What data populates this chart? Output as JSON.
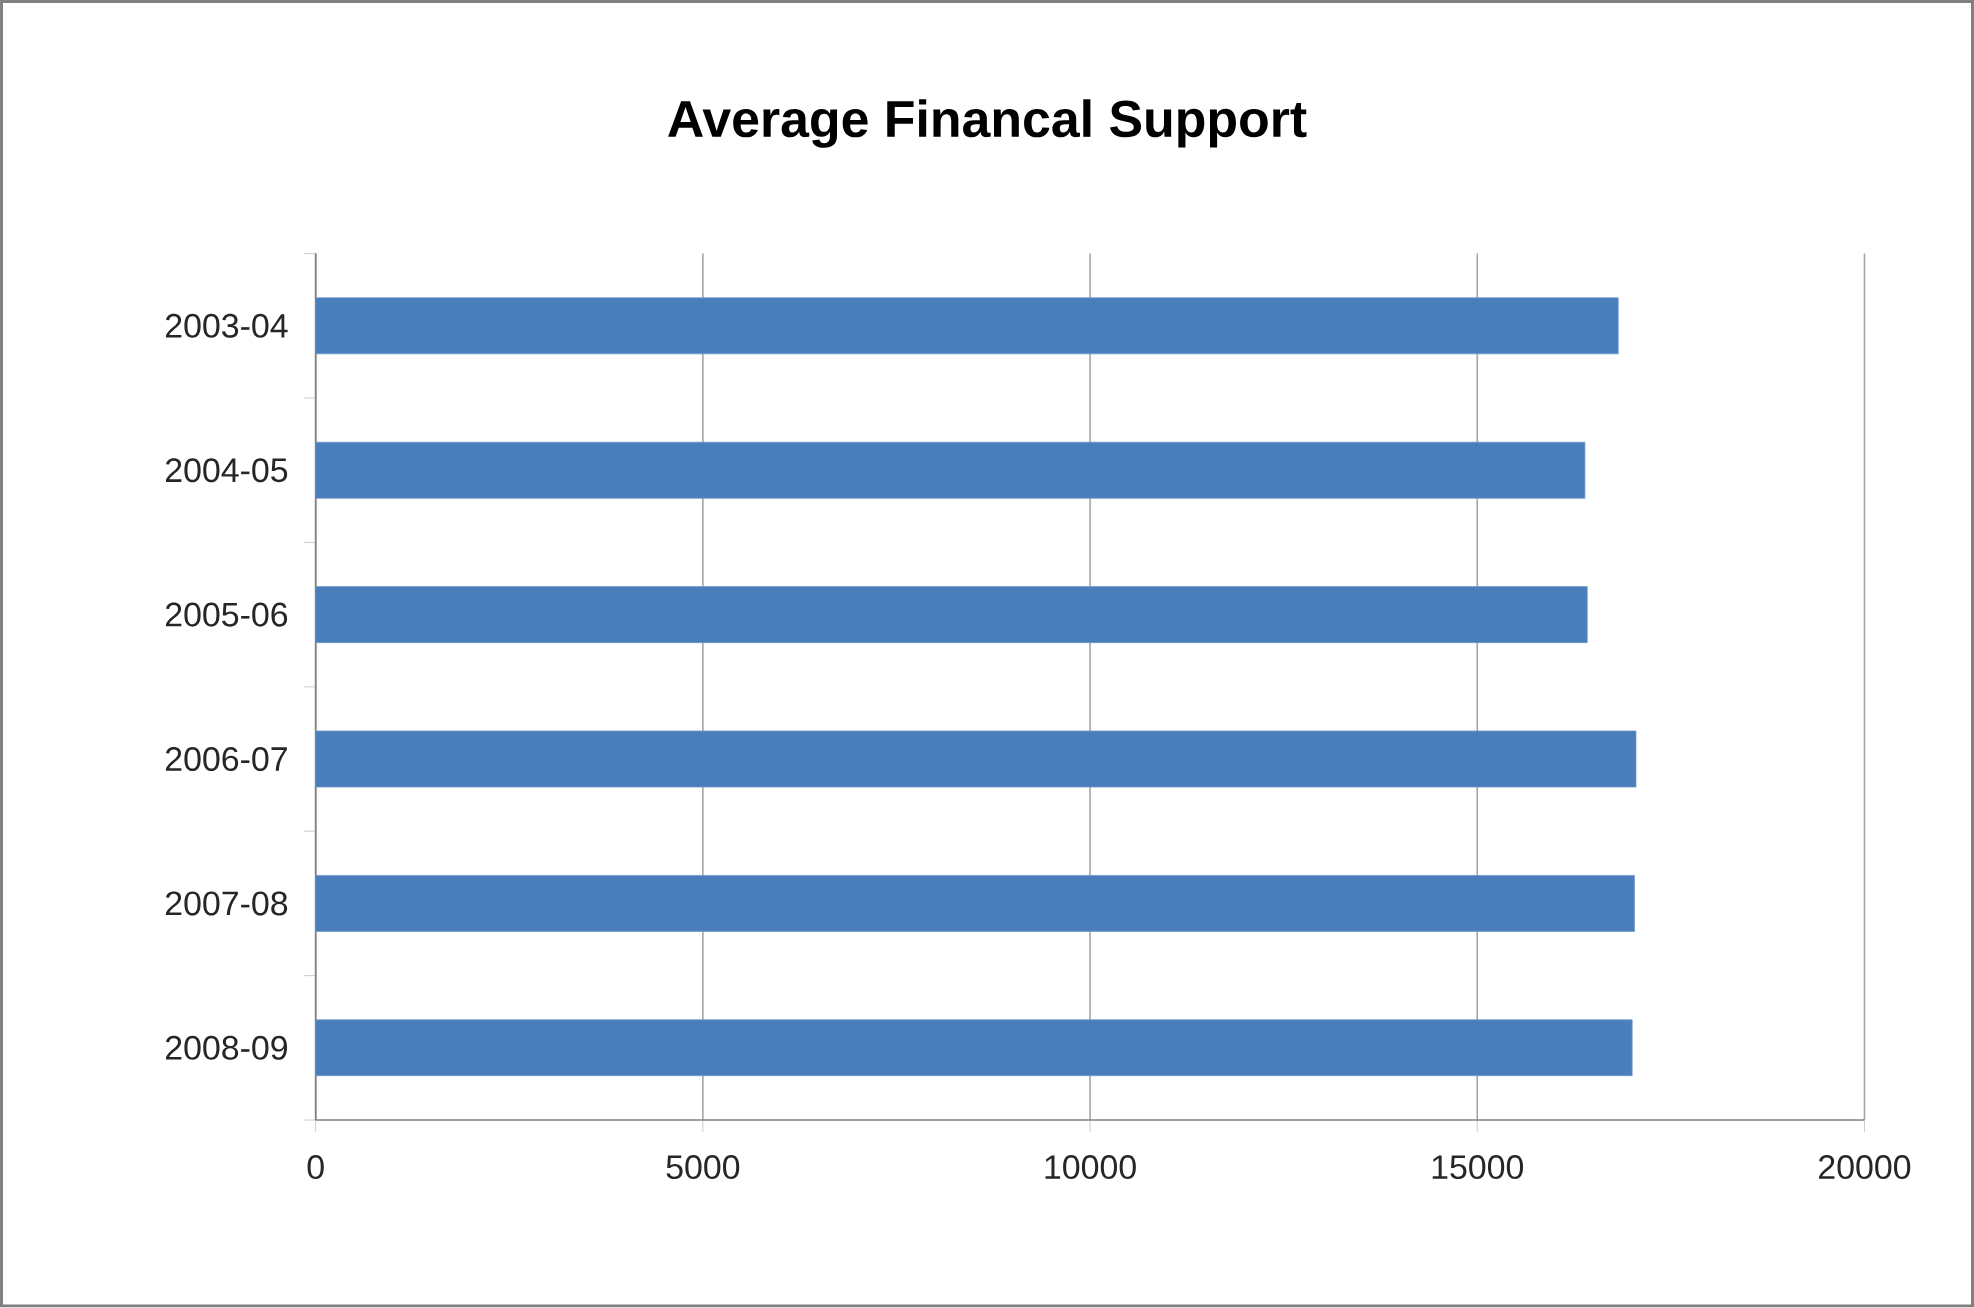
{
  "chart_data": {
    "type": "bar",
    "orientation": "horizontal",
    "title": "Average Financal Support",
    "categories": [
      "2003-04",
      "2004-05",
      "2005-06",
      "2006-07",
      "2007-08",
      "2008-09"
    ],
    "values": [
      16820,
      16390,
      16420,
      17050,
      17030,
      17000
    ],
    "color": "#4a7ebb",
    "xlim": [
      0,
      20000
    ],
    "xticks": [
      0,
      5000,
      10000,
      15000,
      20000
    ],
    "grid": "x"
  }
}
